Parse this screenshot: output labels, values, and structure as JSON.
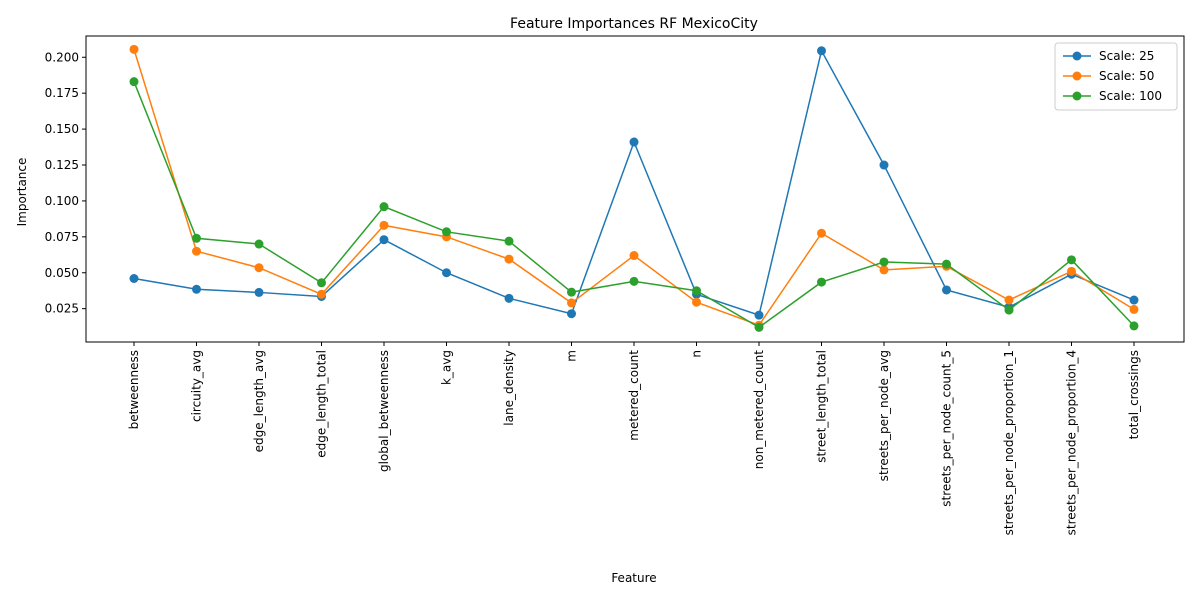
{
  "chart_data": {
    "type": "line",
    "title": "Feature Importances RF MexicoCity",
    "xlabel": "Feature",
    "ylabel": "Importance",
    "categories": [
      "betweenness",
      "circuity_avg",
      "edge_length_avg",
      "edge_length_total",
      "global_betweenness",
      "k_avg",
      "lane_density",
      "m",
      "metered_count",
      "n",
      "non_metered_count",
      "street_length_total",
      "streets_per_node_avg",
      "streets_per_node_count_5",
      "streets_per_node_proportion_1",
      "streets_per_node_proportion_4",
      "total_crossings"
    ],
    "ylim": [
      0.0018,
      0.2148
    ],
    "yticks": [
      0.025,
      0.05,
      0.075,
      0.1,
      0.125,
      0.15,
      0.175,
      0.2
    ],
    "ytick_labels": [
      "0.025",
      "0.050",
      "0.075",
      "0.100",
      "0.125",
      "0.150",
      "0.175",
      "0.200"
    ],
    "grid": false,
    "legend_position": "top-right",
    "series": [
      {
        "name": "Scale: 25",
        "color": "#1f77b4",
        "values": [
          0.046,
          0.0385,
          0.0363,
          0.0335,
          0.073,
          0.05,
          0.0322,
          0.0215,
          0.141,
          0.035,
          0.0205,
          0.2045,
          0.125,
          0.038,
          0.026,
          0.049,
          0.031
        ]
      },
      {
        "name": "Scale: 50",
        "color": "#ff7f0e",
        "values": [
          0.2055,
          0.065,
          0.0535,
          0.035,
          0.083,
          0.075,
          0.0595,
          0.029,
          0.062,
          0.0295,
          0.0135,
          0.0775,
          0.052,
          0.0545,
          0.031,
          0.051,
          0.0245
        ]
      },
      {
        "name": "Scale: 100",
        "color": "#2ca02c",
        "values": [
          0.183,
          0.074,
          0.07,
          0.043,
          0.096,
          0.0785,
          0.072,
          0.0365,
          0.044,
          0.0375,
          0.012,
          0.0435,
          0.0575,
          0.056,
          0.024,
          0.059,
          0.013
        ]
      }
    ]
  }
}
